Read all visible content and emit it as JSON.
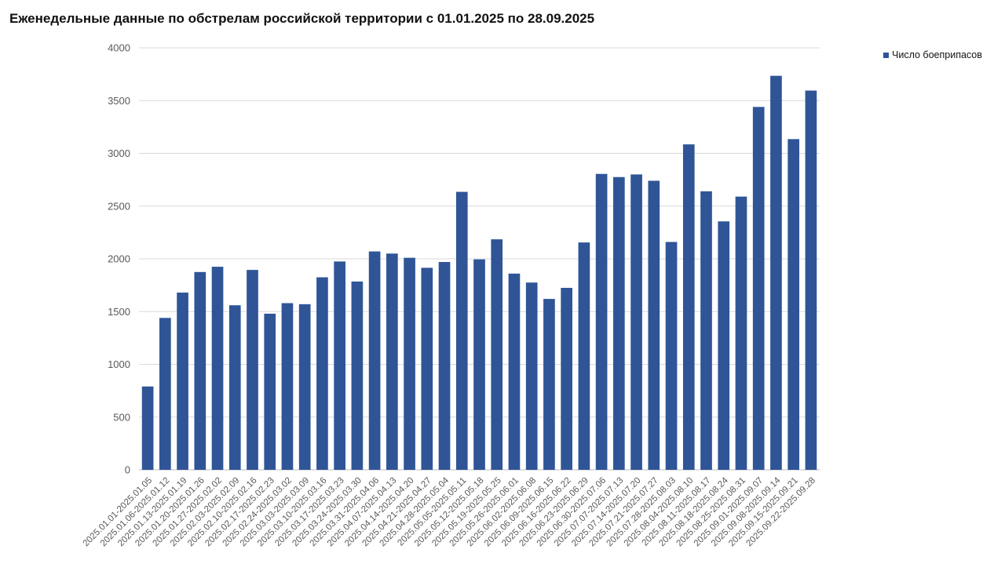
{
  "chart_data": {
    "type": "bar",
    "title": "Еженедельные данные по обстрелам российской территории с 01.01.2025 по 28.09.2025",
    "xlabel": "",
    "ylabel": "",
    "ylim": [
      0,
      4000
    ],
    "y_ticks": [
      "0",
      "500",
      "1000",
      "1500",
      "2000",
      "2500",
      "3000",
      "3500",
      "4000"
    ],
    "grid": true,
    "legend_position": "top-right",
    "bar_color": "#2f5597",
    "categories": [
      "2025.01.01-2025.01.05",
      "2025.01.06-2025.01.12",
      "2025.01.13-2025.01.19",
      "2025.01.20-2025.01.26",
      "2025.01.27-2025.02.02",
      "2025.02.03-2025.02.09",
      "2025.02.10-2025.02.16",
      "2025.02.17-2025.02.23",
      "2025.02.24-2025.03.02",
      "2025.03.03-2025.03.09",
      "2025.03.10-2025.03.16",
      "2025.03.17-2025.03.23",
      "2025.03.24-2025.03.30",
      "2025.03.31-2025.04.06",
      "2025.04.07-2025.04.13",
      "2025.04.14-2025.04.20",
      "2025.04.21-2025.04.27",
      "2025.04.28-2025.05.04",
      "2025.05.05-2025.05.11",
      "2025.05.12-2025.05.18",
      "2025.05.19-2025.05.25",
      "2025.05.26-2025.06.01",
      "2025.06.02-2025.06.08",
      "2025.06.09-2025.06.15",
      "2025.06.16-2025.06.22",
      "2025.06.23-2025.06.29",
      "2025.06.30-2025.07.06",
      "2025.07.07-2025.07.13",
      "2025.07.14-2025.07.20",
      "2025.07.21-2025.07.27",
      "2025.07.28-2025.08.03",
      "2025.08.04-2025.08.10",
      "2025.08.11-2025.08.17",
      "2025.08.18-2025.08.24",
      "2025.08.25-2025.08.31",
      "2025.09.01-2025.09.07",
      "2025.09.08-2025.09.14",
      "2025.09.15-2025.09.21",
      "2025.09.22-2025.09.28"
    ],
    "series": [
      {
        "name": "Число боеприпасов",
        "values": [
          790,
          1440,
          1680,
          1875,
          1925,
          1560,
          1895,
          1480,
          1580,
          1570,
          1825,
          1975,
          1785,
          2070,
          2050,
          2010,
          1915,
          1970,
          2635,
          1995,
          2185,
          1860,
          1775,
          1620,
          1725,
          2155,
          2805,
          2775,
          2800,
          2740,
          2160,
          3085,
          2640,
          2355,
          2590,
          3440,
          3735,
          3135,
          3595
        ]
      }
    ]
  }
}
